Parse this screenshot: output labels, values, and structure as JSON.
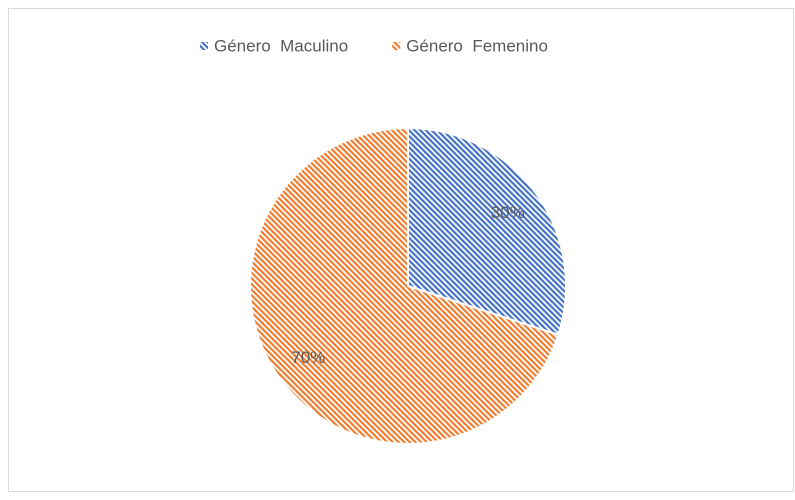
{
  "chart_data": {
    "type": "pie",
    "categories": [
      "Género  Maculino",
      "Género  Femenino"
    ],
    "values": [
      30,
      70
    ],
    "value_labels": [
      "30%",
      "70%"
    ],
    "colors": [
      "#4472c4",
      "#ed7d31"
    ],
    "legend": "top"
  }
}
